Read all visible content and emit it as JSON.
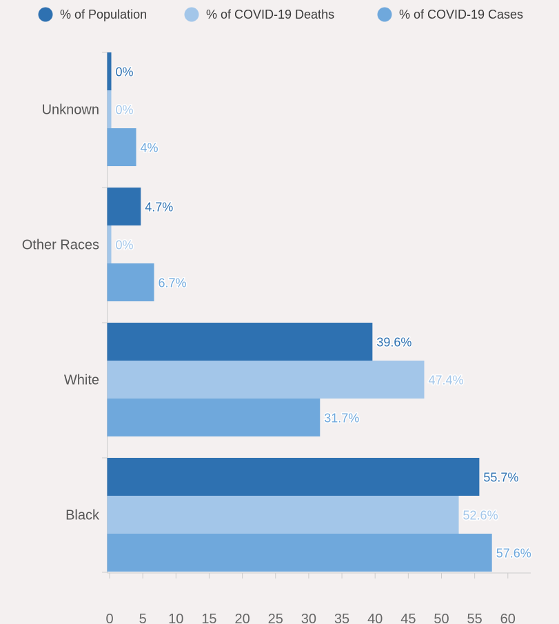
{
  "chart_data": {
    "type": "bar",
    "orientation": "horizontal",
    "categories": [
      "Unknown",
      "Other Races",
      "White",
      "Black"
    ],
    "series": [
      {
        "name": "% of Population",
        "values": [
          0,
          4.7,
          39.6,
          55.7
        ],
        "labels": [
          "0%",
          "4.7%",
          "39.6%",
          "55.7%"
        ],
        "color": "#2e71b1"
      },
      {
        "name": "% of COVID-19 Deaths",
        "values": [
          0,
          0,
          47.4,
          52.6
        ],
        "labels": [
          "0%",
          "0%",
          "47.4%",
          "52.6%"
        ],
        "color": "#a3c6e9"
      },
      {
        "name": "% of COVID-19 Cases",
        "values": [
          4,
          6.7,
          31.7,
          57.6
        ],
        "labels": [
          "4%",
          "6.7%",
          "31.7%",
          "57.6%"
        ],
        "color": "#6fa8dc"
      }
    ],
    "x_ticks": [
      "0",
      "5",
      "10",
      "15",
      "20",
      "25",
      "30",
      "35",
      "40",
      "45",
      "50",
      "55",
      "60"
    ],
    "xlim": [
      0,
      62
    ],
    "grid": false,
    "legend_position": "top"
  },
  "colors": {
    "background": "#f4f0f0",
    "axis": "#cccccc",
    "category_text": "#555555",
    "tick_text": "#666666"
  }
}
